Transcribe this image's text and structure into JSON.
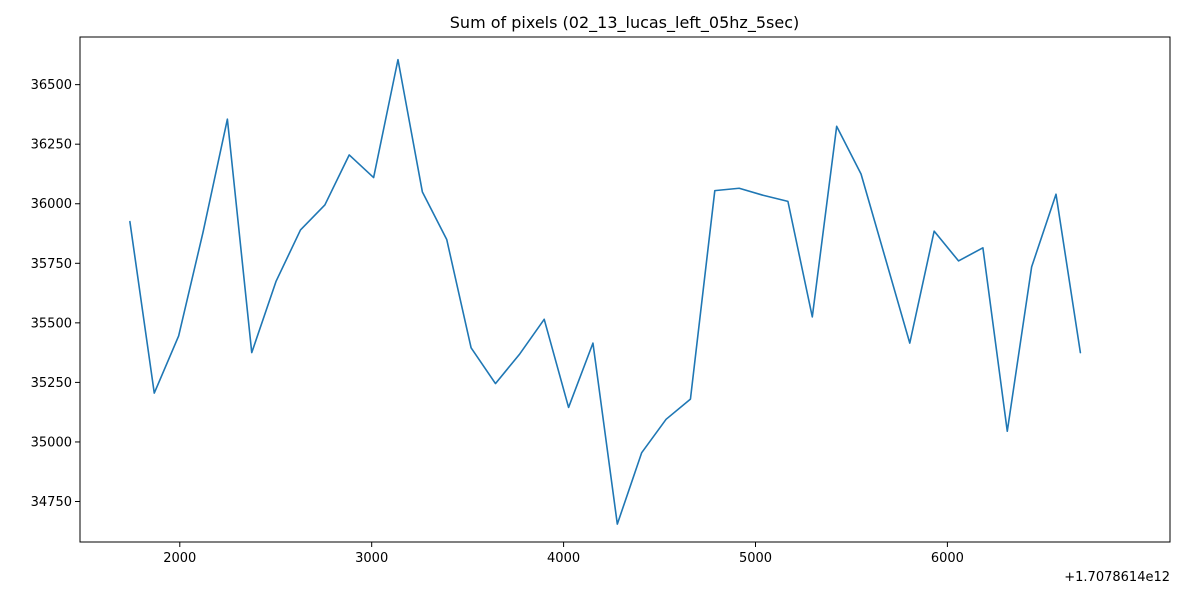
{
  "chart_data": {
    "type": "line",
    "title": "Sum of pixels (02_13_lucas_left_05hz_5sec)",
    "xlabel": "",
    "ylabel": "",
    "x_offset_label": "+1.7078614e12",
    "xlim": [
      1480,
      7160
    ],
    "ylim": [
      34580,
      36700
    ],
    "x_ticks": [
      2000,
      3000,
      4000,
      5000,
      6000
    ],
    "x_tick_labels": [
      "2000",
      "3000",
      "4000",
      "5000",
      "6000"
    ],
    "y_ticks": [
      34750,
      35000,
      35250,
      35500,
      35750,
      36000,
      36250,
      36500
    ],
    "y_tick_labels": [
      "34750",
      "35000",
      "35250",
      "35500",
      "35750",
      "36000",
      "36250",
      "36500"
    ],
    "grid": false,
    "legend": "none",
    "series": [
      {
        "color": "#1f77b4",
        "x": [
          1740,
          1867,
          1994,
          2121,
          2248,
          2375,
          2502,
          2629,
          2756,
          2883,
          3010,
          3137,
          3264,
          3391,
          3518,
          3645,
          3772,
          3899,
          4026,
          4153,
          4280,
          4407,
          4534,
          4661,
          4788,
          4915,
          5042,
          5169,
          5296,
          5423,
          5550,
          5677,
          5804,
          5931,
          6058,
          6185,
          6312,
          6439,
          6566,
          6693
        ],
        "y": [
          35925,
          35205,
          35445,
          35880,
          36355,
          35375,
          35675,
          35890,
          35995,
          36205,
          36110,
          36605,
          36050,
          35850,
          35395,
          35245,
          35370,
          35515,
          35145,
          35415,
          34655,
          34955,
          35095,
          35180,
          36055,
          36065,
          36035,
          36010,
          35525,
          36325,
          36125,
          35770,
          35415,
          35885,
          35760,
          35815,
          35045,
          35735,
          36040,
          35375
        ]
      }
    ]
  }
}
